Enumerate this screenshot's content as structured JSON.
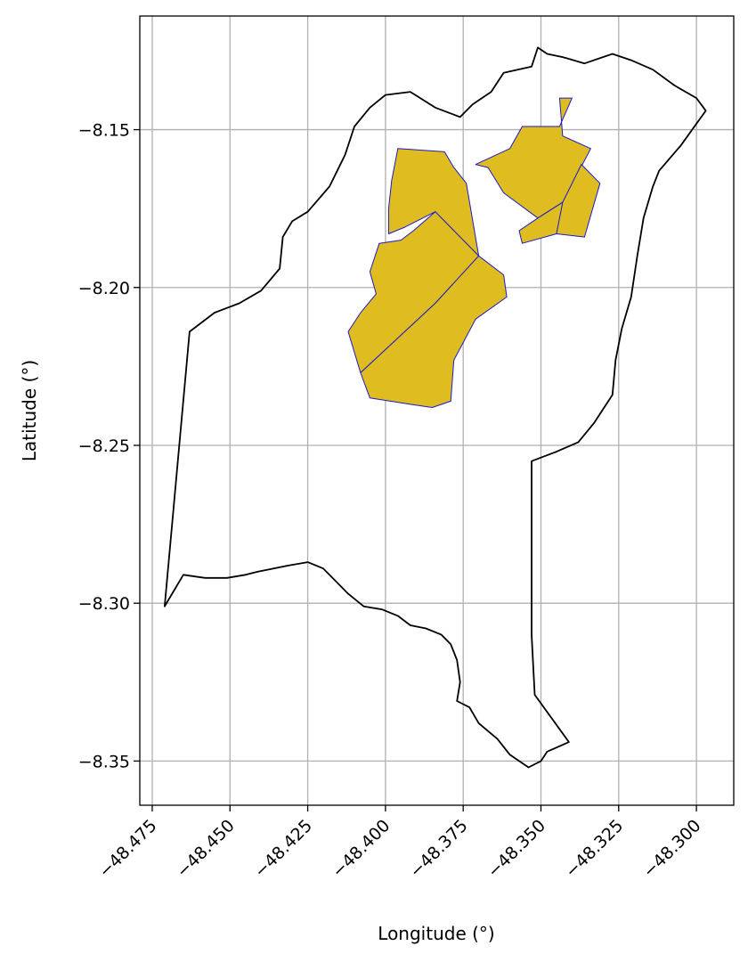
{
  "chart_data": {
    "type": "map",
    "title": "",
    "xlabel": "Longitude (°)",
    "ylabel": "Latitude (°)",
    "xlim": [
      -48.479,
      -48.288
    ],
    "ylim": [
      -8.364,
      -8.114
    ],
    "grid": true,
    "x_ticks": [
      {
        "value": -48.475,
        "label": "−48.475"
      },
      {
        "value": -48.45,
        "label": "−48.450"
      },
      {
        "value": -48.425,
        "label": "−48.425"
      },
      {
        "value": -48.4,
        "label": "−48.400"
      },
      {
        "value": -48.375,
        "label": "−48.375"
      },
      {
        "value": -48.35,
        "label": "−48.350"
      },
      {
        "value": -48.325,
        "label": "−48.325"
      },
      {
        "value": -48.3,
        "label": "−48.300"
      }
    ],
    "y_ticks": [
      {
        "value": -8.15,
        "label": "−8.15"
      },
      {
        "value": -8.2,
        "label": "−8.20"
      },
      {
        "value": -8.25,
        "label": "−8.25"
      },
      {
        "value": -8.3,
        "label": "−8.30"
      },
      {
        "value": -8.35,
        "label": "−8.35"
      }
    ],
    "colors": {
      "outline": "#000000",
      "fill": "#dfbc1f",
      "parcel_edge": "#1a1acc",
      "grid": "#b0b0b0"
    },
    "outline": [
      [
        -48.471,
        -8.301
      ],
      [
        -48.468,
        -8.296
      ],
      [
        -48.465,
        -8.291
      ],
      [
        -48.458,
        -8.292
      ],
      [
        -48.451,
        -8.292
      ],
      [
        -48.445,
        -8.291
      ],
      [
        -48.441,
        -8.29
      ],
      [
        -48.436,
        -8.289
      ],
      [
        -48.431,
        -8.288
      ],
      [
        -48.425,
        -8.287
      ],
      [
        -48.42,
        -8.289
      ],
      [
        -48.416,
        -8.293
      ],
      [
        -48.412,
        -8.297
      ],
      [
        -48.407,
        -8.301
      ],
      [
        -48.401,
        -8.302
      ],
      [
        -48.396,
        -8.304
      ],
      [
        -48.392,
        -8.307
      ],
      [
        -48.387,
        -8.308
      ],
      [
        -48.382,
        -8.31
      ],
      [
        -48.379,
        -8.313
      ],
      [
        -48.377,
        -8.318
      ],
      [
        -48.376,
        -8.325
      ],
      [
        -48.377,
        -8.331
      ],
      [
        -48.373,
        -8.333
      ],
      [
        -48.37,
        -8.338
      ],
      [
        -48.364,
        -8.343
      ],
      [
        -48.36,
        -8.348
      ],
      [
        -48.354,
        -8.352
      ],
      [
        -48.35,
        -8.35
      ],
      [
        -48.348,
        -8.347
      ],
      [
        -48.341,
        -8.344
      ],
      [
        -48.352,
        -8.329
      ],
      [
        -48.353,
        -8.31
      ],
      [
        -48.353,
        -8.28
      ],
      [
        -48.353,
        -8.255
      ],
      [
        -48.345,
        -8.252
      ],
      [
        -48.338,
        -8.249
      ],
      [
        -48.333,
        -8.243
      ],
      [
        -48.327,
        -8.234
      ],
      [
        -48.326,
        -8.223
      ],
      [
        -48.324,
        -8.213
      ],
      [
        -48.321,
        -8.203
      ],
      [
        -48.319,
        -8.19
      ],
      [
        -48.317,
        -8.178
      ],
      [
        -48.314,
        -8.168
      ],
      [
        -48.312,
        -8.163
      ],
      [
        -48.305,
        -8.155
      ],
      [
        -48.297,
        -8.144
      ],
      [
        -48.3,
        -8.14
      ],
      [
        -48.307,
        -8.136
      ],
      [
        -48.314,
        -8.131
      ],
      [
        -48.321,
        -8.128
      ],
      [
        -48.327,
        -8.126
      ],
      [
        -48.336,
        -8.129
      ],
      [
        -48.343,
        -8.127
      ],
      [
        -48.348,
        -8.126
      ],
      [
        -48.351,
        -8.124
      ],
      [
        -48.353,
        -8.13
      ],
      [
        -48.362,
        -8.132
      ],
      [
        -48.366,
        -8.138
      ],
      [
        -48.372,
        -8.142
      ],
      [
        -48.376,
        -8.146
      ],
      [
        -48.384,
        -8.143
      ],
      [
        -48.392,
        -8.138
      ],
      [
        -48.4,
        -8.139
      ],
      [
        -48.405,
        -8.143
      ],
      [
        -48.41,
        -8.149
      ],
      [
        -48.413,
        -8.158
      ],
      [
        -48.418,
        -8.168
      ],
      [
        -48.425,
        -8.176
      ],
      [
        -48.43,
        -8.179
      ],
      [
        -48.433,
        -8.184
      ],
      [
        -48.434,
        -8.194
      ],
      [
        -48.44,
        -8.201
      ],
      [
        -48.447,
        -8.205
      ],
      [
        -48.455,
        -8.208
      ],
      [
        -48.463,
        -8.214
      ],
      [
        -48.471,
        -8.301
      ]
    ],
    "parcels": [
      [
        [
          -48.396,
          -8.156
        ],
        [
          -48.381,
          -8.157
        ],
        [
          -48.378,
          -8.162
        ],
        [
          -48.374,
          -8.167
        ],
        [
          -48.37,
          -8.19
        ],
        [
          -48.384,
          -8.176
        ],
        [
          -48.394,
          -8.181
        ],
        [
          -48.399,
          -8.183
        ],
        [
          -48.399,
          -8.175
        ],
        [
          -48.398,
          -8.166
        ]
      ],
      [
        [
          -48.384,
          -8.176
        ],
        [
          -48.391,
          -8.182
        ],
        [
          -48.395,
          -8.185
        ],
        [
          -48.402,
          -8.186
        ],
        [
          -48.405,
          -8.195
        ],
        [
          -48.403,
          -8.202
        ],
        [
          -48.408,
          -8.208
        ],
        [
          -48.412,
          -8.214
        ],
        [
          -48.408,
          -8.227
        ],
        [
          -48.384,
          -8.205
        ],
        [
          -48.37,
          -8.19
        ]
      ],
      [
        [
          -48.408,
          -8.227
        ],
        [
          -48.405,
          -8.235
        ],
        [
          -48.392,
          -8.237
        ],
        [
          -48.385,
          -8.238
        ],
        [
          -48.379,
          -8.236
        ],
        [
          -48.378,
          -8.223
        ],
        [
          -48.371,
          -8.21
        ],
        [
          -48.361,
          -8.203
        ],
        [
          -48.362,
          -8.196
        ],
        [
          -48.37,
          -8.19
        ],
        [
          -48.384,
          -8.205
        ]
      ],
      [
        [
          -48.371,
          -8.161
        ],
        [
          -48.36,
          -8.156
        ],
        [
          -48.356,
          -8.149
        ],
        [
          -48.344,
          -8.149
        ],
        [
          -48.34,
          -8.14
        ],
        [
          -48.344,
          -8.14
        ],
        [
          -48.343,
          -8.152
        ],
        [
          -48.334,
          -8.156
        ],
        [
          -48.343,
          -8.173
        ],
        [
          -48.351,
          -8.178
        ],
        [
          -48.362,
          -8.17
        ],
        [
          -48.367,
          -8.162
        ]
      ],
      [
        [
          -48.351,
          -8.178
        ],
        [
          -48.357,
          -8.182
        ],
        [
          -48.356,
          -8.186
        ],
        [
          -48.345,
          -8.183
        ],
        [
          -48.34,
          -8.18
        ],
        [
          -48.343,
          -8.173
        ]
      ],
      [
        [
          -48.343,
          -8.173
        ],
        [
          -48.337,
          -8.161
        ],
        [
          -48.331,
          -8.167
        ],
        [
          -48.336,
          -8.184
        ],
        [
          -48.345,
          -8.183
        ]
      ]
    ]
  }
}
